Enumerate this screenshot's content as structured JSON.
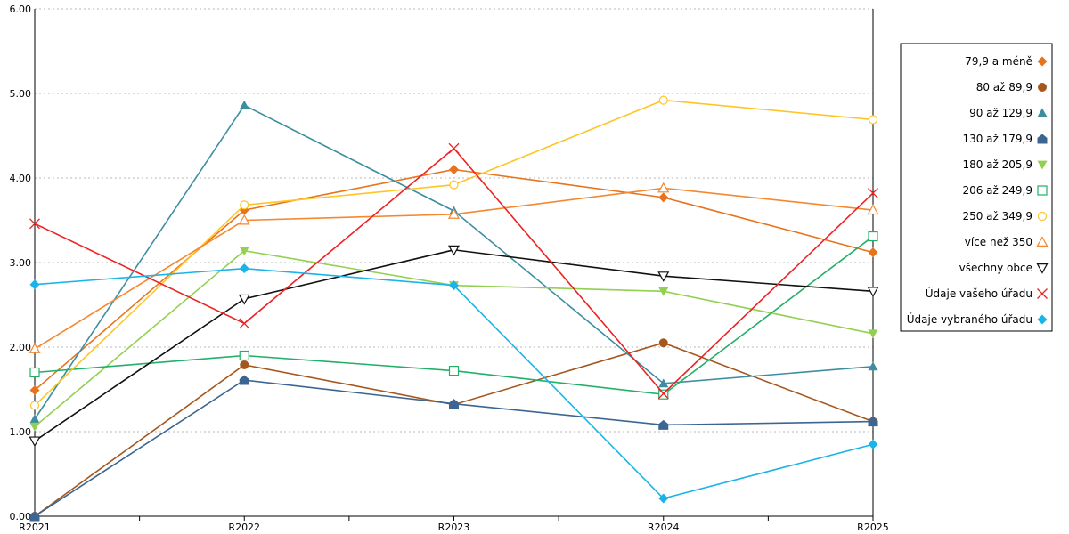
{
  "chart_data": {
    "type": "line",
    "title": "",
    "xlabel": "",
    "ylabel": "",
    "categories": [
      "R2021",
      "R2022",
      "R2023",
      "R2024",
      "R2025"
    ],
    "ylim": [
      0,
      6
    ],
    "yticks": [
      "0.00",
      "1.00",
      "2.00",
      "3.00",
      "4.00",
      "5.00",
      "6.00"
    ],
    "grid": true,
    "legend_position": "right",
    "series": [
      {
        "name": "79,9 a méně",
        "color": "#e8731d",
        "marker": "diamond",
        "values": [
          1.49,
          3.62,
          4.1,
          3.77,
          3.12
        ]
      },
      {
        "name": "80 až 89,9",
        "color": "#a5571e",
        "marker": "circle",
        "values": [
          0.0,
          1.79,
          1.32,
          2.05,
          1.12
        ]
      },
      {
        "name": "90 až 129,9",
        "color": "#3e8ea1",
        "marker": "triangle-up",
        "values": [
          1.15,
          4.86,
          3.61,
          1.57,
          1.77
        ]
      },
      {
        "name": "130 až 179,9",
        "color": "#3c6591",
        "marker": "house",
        "values": [
          0.0,
          1.61,
          1.33,
          1.08,
          1.12
        ]
      },
      {
        "name": "180 až 205,9",
        "color": "#92d050",
        "marker": "triangle-down",
        "values": [
          1.06,
          3.14,
          2.73,
          2.66,
          2.16
        ]
      },
      {
        "name": "206 až 249,9",
        "color": "#22b068",
        "marker": "square-open",
        "values": [
          1.7,
          1.9,
          1.72,
          1.44,
          3.31
        ]
      },
      {
        "name": "250 až 349,9",
        "color": "#ffc526",
        "marker": "circle-open",
        "values": [
          1.31,
          3.68,
          3.92,
          4.92,
          4.69
        ]
      },
      {
        "name": "více než 350",
        "color": "#f5872f",
        "marker": "triangle-up-open",
        "values": [
          1.98,
          3.5,
          3.57,
          3.88,
          3.62
        ]
      },
      {
        "name": "všechny obce",
        "color": "#111111",
        "marker": "triangle-down-open",
        "values": [
          0.89,
          2.57,
          3.15,
          2.84,
          2.66
        ]
      },
      {
        "name": "Údaje vašeho úřadu",
        "color": "#ee2222",
        "marker": "x",
        "values": [
          3.46,
          2.28,
          4.35,
          1.45,
          3.82
        ]
      },
      {
        "name": "Údaje vybraného úřadu",
        "color": "#1bb4ea",
        "marker": "diamond",
        "values": [
          2.74,
          2.93,
          2.73,
          0.21,
          0.85
        ]
      }
    ]
  }
}
